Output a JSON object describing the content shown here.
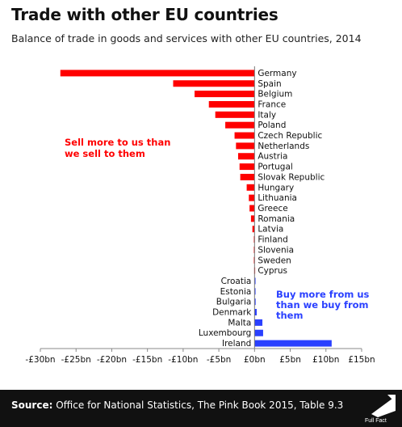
{
  "title": "Trade with other EU countries",
  "subtitle": "Balance of trade in goods and services with other EU countries, 2014",
  "colors": {
    "negative": "#ff0000",
    "positive": "#2a40ff",
    "footer": "#111111"
  },
  "chart_data": {
    "type": "bar",
    "orientation": "horizontal",
    "categories": [
      "Germany",
      "Spain",
      "Belgium",
      "France",
      "Italy",
      "Poland",
      "Czech Republic",
      "Netherlands",
      "Austria",
      "Portugal",
      "Slovak Republic",
      "Hungary",
      "Lithuania",
      "Greece",
      "Romania",
      "Latvia",
      "Finland",
      "Slovenia",
      "Sweden",
      "Cyprus",
      "Croatia",
      "Estonia",
      "Bulgaria",
      "Denmark",
      "Malta",
      "Luxembourg",
      "Ireland"
    ],
    "values": [
      -27.2,
      -11.4,
      -8.4,
      -6.4,
      -5.5,
      -4.1,
      -2.8,
      -2.6,
      -2.3,
      -2.1,
      -2.0,
      -1.1,
      -0.8,
      -0.7,
      -0.5,
      -0.3,
      -0.1,
      -0.1,
      -0.1,
      -0.05,
      0.1,
      0.1,
      0.15,
      0.3,
      1.1,
      1.2,
      10.8
    ],
    "xlim": [
      -30,
      15
    ],
    "x_ticks": [
      -30,
      -25,
      -20,
      -15,
      -10,
      -5,
      0,
      5,
      10,
      15
    ],
    "x_tick_labels": [
      "-£30bn",
      "-£25bn",
      "-£20bn",
      "-£15bn",
      "-£10bn",
      "-£5bn",
      "£0bn",
      "£5bn",
      "£10bn",
      "£15bn"
    ],
    "grid": false,
    "annotations": {
      "sell": [
        "Sell more to us than",
        "we sell to them"
      ],
      "buy": [
        "Buy more from us",
        "than we buy from",
        "them"
      ]
    }
  },
  "footer": {
    "source_label": "Source:",
    "source_text": "Office for National Statistics, The Pink Book 2015, Table 9.3",
    "logo_text": "Full Fact"
  }
}
